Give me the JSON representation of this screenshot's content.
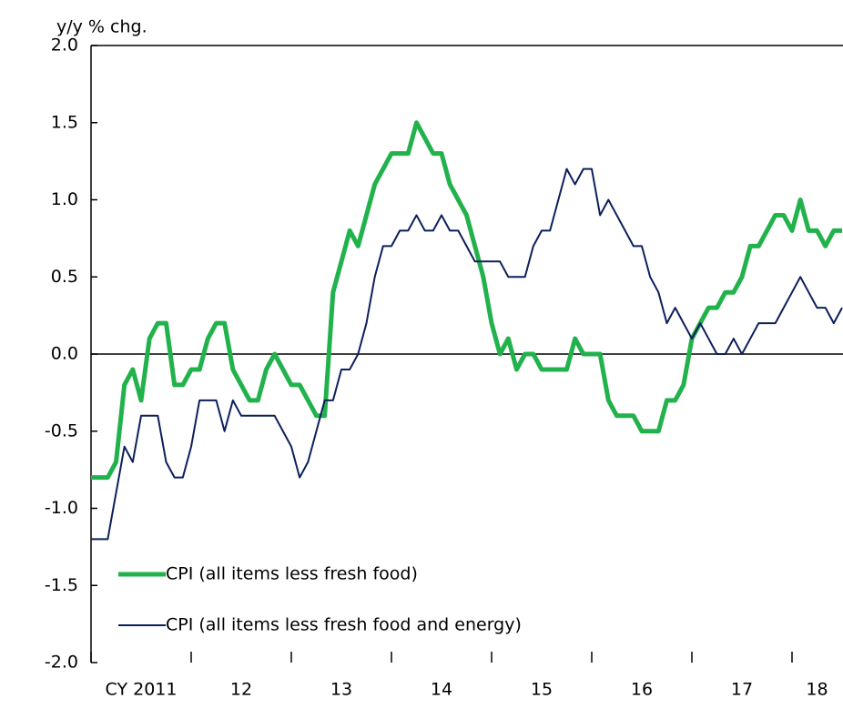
{
  "chart_data": {
    "type": "line",
    "y_axis_label": "y/y % chg.",
    "categories": [
      null,
      null,
      null,
      null,
      null,
      null,
      "CY 2011",
      null,
      null,
      null,
      null,
      null,
      null,
      null,
      null,
      null,
      null,
      null,
      "12",
      null,
      null,
      null,
      null,
      null,
      null,
      null,
      null,
      null,
      null,
      null,
      "13",
      null,
      null,
      null,
      null,
      null,
      null,
      null,
      null,
      null,
      null,
      null,
      "14",
      null,
      null,
      null,
      null,
      null,
      null,
      null,
      null,
      null,
      null,
      null,
      "15",
      null,
      null,
      null,
      null,
      null,
      null,
      null,
      null,
      null,
      null,
      null,
      "16",
      null,
      null,
      null,
      null,
      null,
      null,
      null,
      null,
      null,
      null,
      null,
      "17",
      null,
      null,
      null,
      null,
      null,
      null,
      null,
      null,
      "18",
      null,
      null,
      null
    ],
    "series": [
      {
        "name": "CPI (all items less fresh food)",
        "color": "#22b24c",
        "width": 5,
        "values": [
          -0.8,
          -0.8,
          -0.8,
          -0.7,
          -0.2,
          -0.1,
          -0.3,
          0.1,
          0.2,
          0.2,
          -0.2,
          -0.2,
          -0.1,
          -0.1,
          0.1,
          0.2,
          0.2,
          -0.1,
          -0.2,
          -0.3,
          -0.3,
          -0.1,
          0.0,
          -0.1,
          -0.2,
          -0.2,
          -0.3,
          -0.4,
          -0.4,
          0.4,
          0.6,
          0.8,
          0.7,
          0.9,
          1.1,
          1.2,
          1.3,
          1.3,
          1.3,
          1.5,
          1.4,
          1.3,
          1.3,
          1.1,
          1.0,
          0.9,
          0.7,
          0.5,
          0.2,
          0.0,
          0.1,
          -0.1,
          0.0,
          0.0,
          -0.1,
          -0.1,
          -0.1,
          -0.1,
          0.1,
          0.0,
          0.0,
          0.0,
          -0.3,
          -0.4,
          -0.4,
          -0.4,
          -0.5,
          -0.5,
          -0.5,
          -0.3,
          -0.3,
          -0.2,
          0.1,
          0.2,
          0.3,
          0.3,
          0.4,
          0.4,
          0.5,
          0.7,
          0.7,
          0.8,
          0.9,
          0.9,
          0.8,
          1.0,
          0.8,
          0.8,
          0.7,
          0.8,
          0.8
        ]
      },
      {
        "name": "CPI (all items less fresh food and energy)",
        "color": "#0d1f5c",
        "width": 2,
        "values": [
          -1.2,
          -1.2,
          -1.2,
          -0.9,
          -0.6,
          -0.7,
          -0.4,
          -0.4,
          -0.4,
          -0.7,
          -0.8,
          -0.8,
          -0.6,
          -0.3,
          -0.3,
          -0.3,
          -0.5,
          -0.3,
          -0.4,
          -0.4,
          -0.4,
          -0.4,
          -0.4,
          -0.5,
          -0.6,
          -0.8,
          -0.7,
          -0.5,
          -0.3,
          -0.3,
          -0.1,
          -0.1,
          0.0,
          0.2,
          0.5,
          0.7,
          0.7,
          0.8,
          0.8,
          0.9,
          0.8,
          0.8,
          0.9,
          0.8,
          0.8,
          0.7,
          0.6,
          0.6,
          0.6,
          0.6,
          0.5,
          0.5,
          0.5,
          0.7,
          0.8,
          0.8,
          1.0,
          1.2,
          1.1,
          1.2,
          1.2,
          0.9,
          1.0,
          0.9,
          0.8,
          0.7,
          0.7,
          0.5,
          0.4,
          0.2,
          0.3,
          0.2,
          0.1,
          0.2,
          0.1,
          0.0,
          0.0,
          0.1,
          0.0,
          0.1,
          0.2,
          0.2,
          0.2,
          0.3,
          0.4,
          0.5,
          0.4,
          0.3,
          0.3,
          0.2,
          0.3
        ]
      }
    ],
    "ylim": [
      -2.0,
      2.0
    ],
    "yticks": [
      {
        "value": -2.0,
        "label": "-2.0"
      },
      {
        "value": -1.5,
        "label": "-1.5"
      },
      {
        "value": -1.0,
        "label": "-1.0"
      },
      {
        "value": -0.5,
        "label": "-0.5"
      },
      {
        "value": 0.0,
        "label": "0.0"
      },
      {
        "value": 0.5,
        "label": "0.5"
      },
      {
        "value": 1.0,
        "label": "1.0"
      },
      {
        "value": 1.5,
        "label": "1.5"
      },
      {
        "value": 2.0,
        "label": "2.0"
      }
    ],
    "grid": false,
    "legend": "lower left"
  }
}
